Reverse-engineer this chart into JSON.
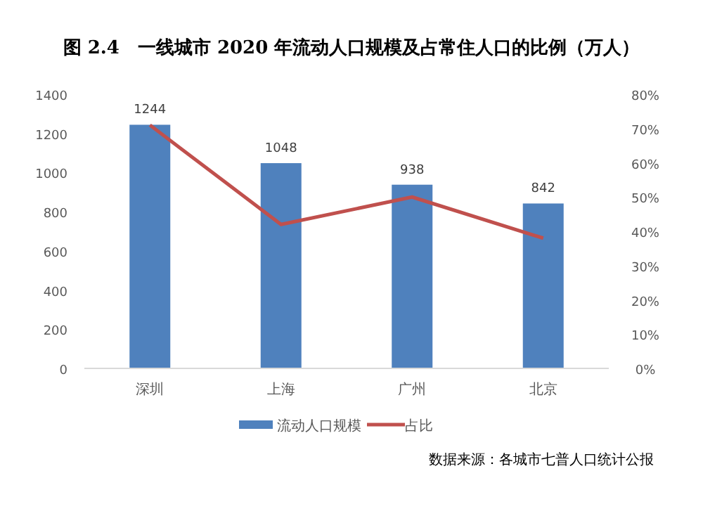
{
  "chart_data": {
    "type": "bar",
    "title": "图 2.4　一线城市 2020 年流动人口规模及占常住人口的比例（万人）",
    "categories": [
      "深圳",
      "上海",
      "广州",
      "北京"
    ],
    "series": [
      {
        "name": "流动人口规模",
        "color": "#4f81bd",
        "values": [
          1244,
          1048,
          938,
          842
        ],
        "value_labels": [
          "1244",
          "1048",
          "938",
          "842"
        ]
      },
      {
        "name": "占比",
        "type": "line",
        "axis": "y2",
        "color": "#c0504d",
        "values": [
          71,
          42,
          50,
          38
        ]
      }
    ],
    "ylim": [
      0,
      1400
    ],
    "yticks": [
      0,
      200,
      400,
      600,
      800,
      1000,
      1200,
      1400
    ],
    "y2lim": [
      0,
      80
    ],
    "y2ticks": [
      {
        "value": 0,
        "label": "0%"
      },
      {
        "value": 10,
        "label": "10%"
      },
      {
        "value": 20,
        "label": "20%"
      },
      {
        "value": 30,
        "label": "30%"
      },
      {
        "value": 40,
        "label": "40%"
      },
      {
        "value": 50,
        "label": "50%"
      },
      {
        "value": 60,
        "label": "60%"
      },
      {
        "value": 70,
        "label": "70%"
      },
      {
        "value": 80,
        "label": "80%"
      }
    ],
    "legend": "bottom",
    "grid": false,
    "annotations": [
      "数据来源：各城市七普人口统计公报"
    ]
  }
}
